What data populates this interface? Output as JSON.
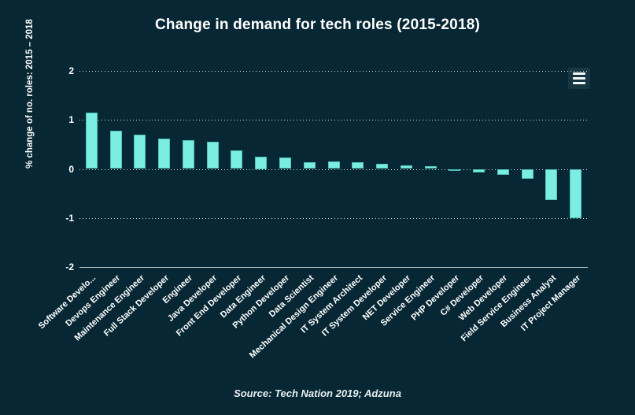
{
  "title": "Change in demand for tech roles (2015-2018)",
  "source": "Source: Tech Nation 2019; Adzuna",
  "menu": {
    "icon": "hamburger-menu-icon"
  },
  "colors": {
    "background": "#062733",
    "bar_fill": "#7cede2",
    "bar_border": "#4fc4bb",
    "text": "#ffffff",
    "gridline": "rgba(255,255,255,0.85)",
    "axis_line": "#c9d3d6"
  },
  "chart_data": {
    "type": "bar",
    "title": "Change in demand for tech roles (2015-2018)",
    "xlabel": "",
    "ylabel": "% change of no. roles: 2015 – 2018",
    "ylim": [
      -2,
      2
    ],
    "yticks": [
      2,
      1,
      0,
      -1,
      -2
    ],
    "grid": "horizontal-dotted",
    "legend": "none",
    "categories": [
      "Software Develo...",
      "Devops Engineer",
      "Maintenance Engineer",
      "Full Stack Developer",
      "Engineer",
      "Java Developer",
      "Front End Developer",
      "Data Engineer",
      "Python Developer",
      "Data Scientist",
      "Mechanical Design Engineer",
      "IT System Architect",
      "IT System Developer",
      "NET Developer",
      "Service Engineer",
      "PHP Developer",
      "C# Developer",
      "Web Developer",
      "Field Service Engineer",
      "Business Analyst",
      "IT Project Manager"
    ],
    "values": [
      1.15,
      0.78,
      0.7,
      0.62,
      0.58,
      0.55,
      0.37,
      0.25,
      0.24,
      0.14,
      0.15,
      0.14,
      0.1,
      0.08,
      0.05,
      -0.02,
      -0.07,
      -0.12,
      -0.2,
      -0.63,
      -1.0
    ]
  }
}
